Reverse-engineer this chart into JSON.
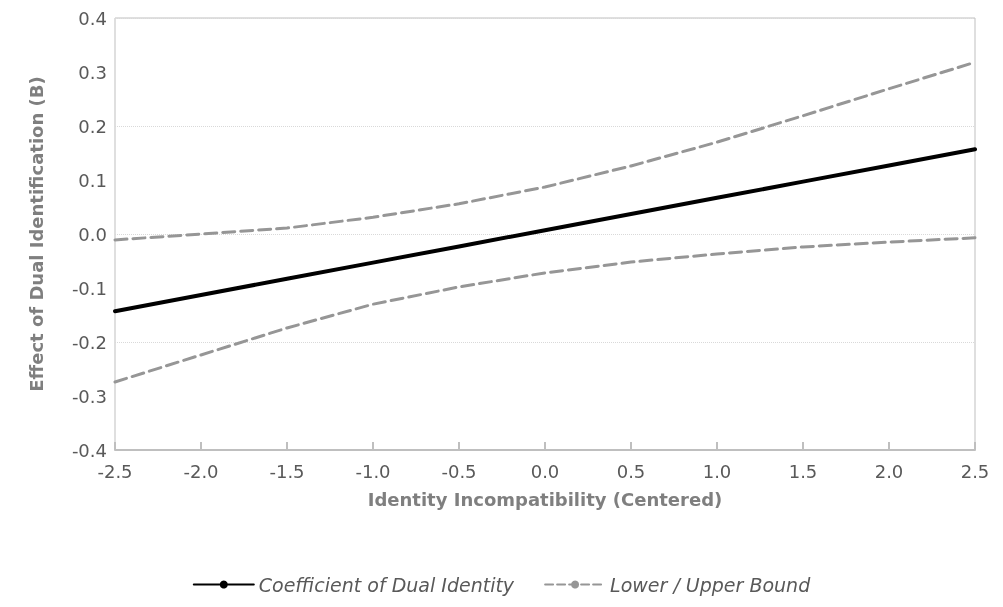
{
  "chart_data": {
    "type": "line",
    "xlabel": "Identity Incompatibility (Centered)",
    "ylabel": "Effect of Dual Identification (B)",
    "x": [
      -2.5,
      -2.0,
      -1.5,
      -1.0,
      -0.5,
      0.0,
      0.5,
      1.0,
      1.5,
      2.0,
      2.5
    ],
    "series": [
      {
        "name": "Coefficient of Dual Identity",
        "color": "#000000",
        "line_style": "solid",
        "values": [
          -0.143,
          -0.113,
          -0.083,
          -0.053,
          -0.023,
          0.007,
          0.037,
          0.067,
          0.097,
          0.127,
          0.157
        ]
      },
      {
        "name": "Lower / Upper Bound",
        "color": "#969696",
        "line_style": "dashed",
        "values": [
          -0.011,
          0.0,
          0.011,
          0.031,
          0.056,
          0.087,
          0.126,
          0.17,
          0.219,
          0.269,
          0.318
        ]
      },
      {
        "color": "#969696",
        "line_style": "dashed",
        "values": [
          -0.274,
          -0.224,
          -0.174,
          -0.13,
          -0.098,
          -0.072,
          -0.052,
          -0.037,
          -0.024,
          -0.015,
          -0.007
        ]
      }
    ],
    "xlim": [
      -2.5,
      2.5
    ],
    "xticks": [
      {
        "value": -2.5,
        "label": "-2.5"
      },
      {
        "value": -2,
        "label": "-2.0"
      },
      {
        "value": -1.5,
        "label": "-1.5"
      },
      {
        "value": -1,
        "label": "-1.0"
      },
      {
        "value": -0.5,
        "label": "-0.5"
      },
      {
        "value": 0,
        "label": "0.0"
      },
      {
        "value": 0.5,
        "label": "0.5"
      },
      {
        "value": 1,
        "label": "1.0"
      },
      {
        "value": 1.5,
        "label": "1.5"
      },
      {
        "value": 2,
        "label": "2.0"
      },
      {
        "value": 2.5,
        "label": "2.5"
      }
    ],
    "ylim": [
      -0.4,
      0.4
    ],
    "yticks": [
      {
        "value": -0.4,
        "label": "-0.4"
      },
      {
        "value": -0.3,
        "label": "-0.3"
      },
      {
        "value": -0.2,
        "label": "-0.2"
      },
      {
        "value": -0.1,
        "label": "-0.1"
      },
      {
        "value": 0,
        "label": "0.0"
      },
      {
        "value": 0.1,
        "label": "0.1"
      },
      {
        "value": 0.2,
        "label": "0.2"
      },
      {
        "value": 0.3,
        "label": "0.3"
      },
      {
        "value": 0.4,
        "label": "0.4"
      }
    ],
    "grid": "y",
    "legend": "bottom",
    "marker": "none"
  }
}
